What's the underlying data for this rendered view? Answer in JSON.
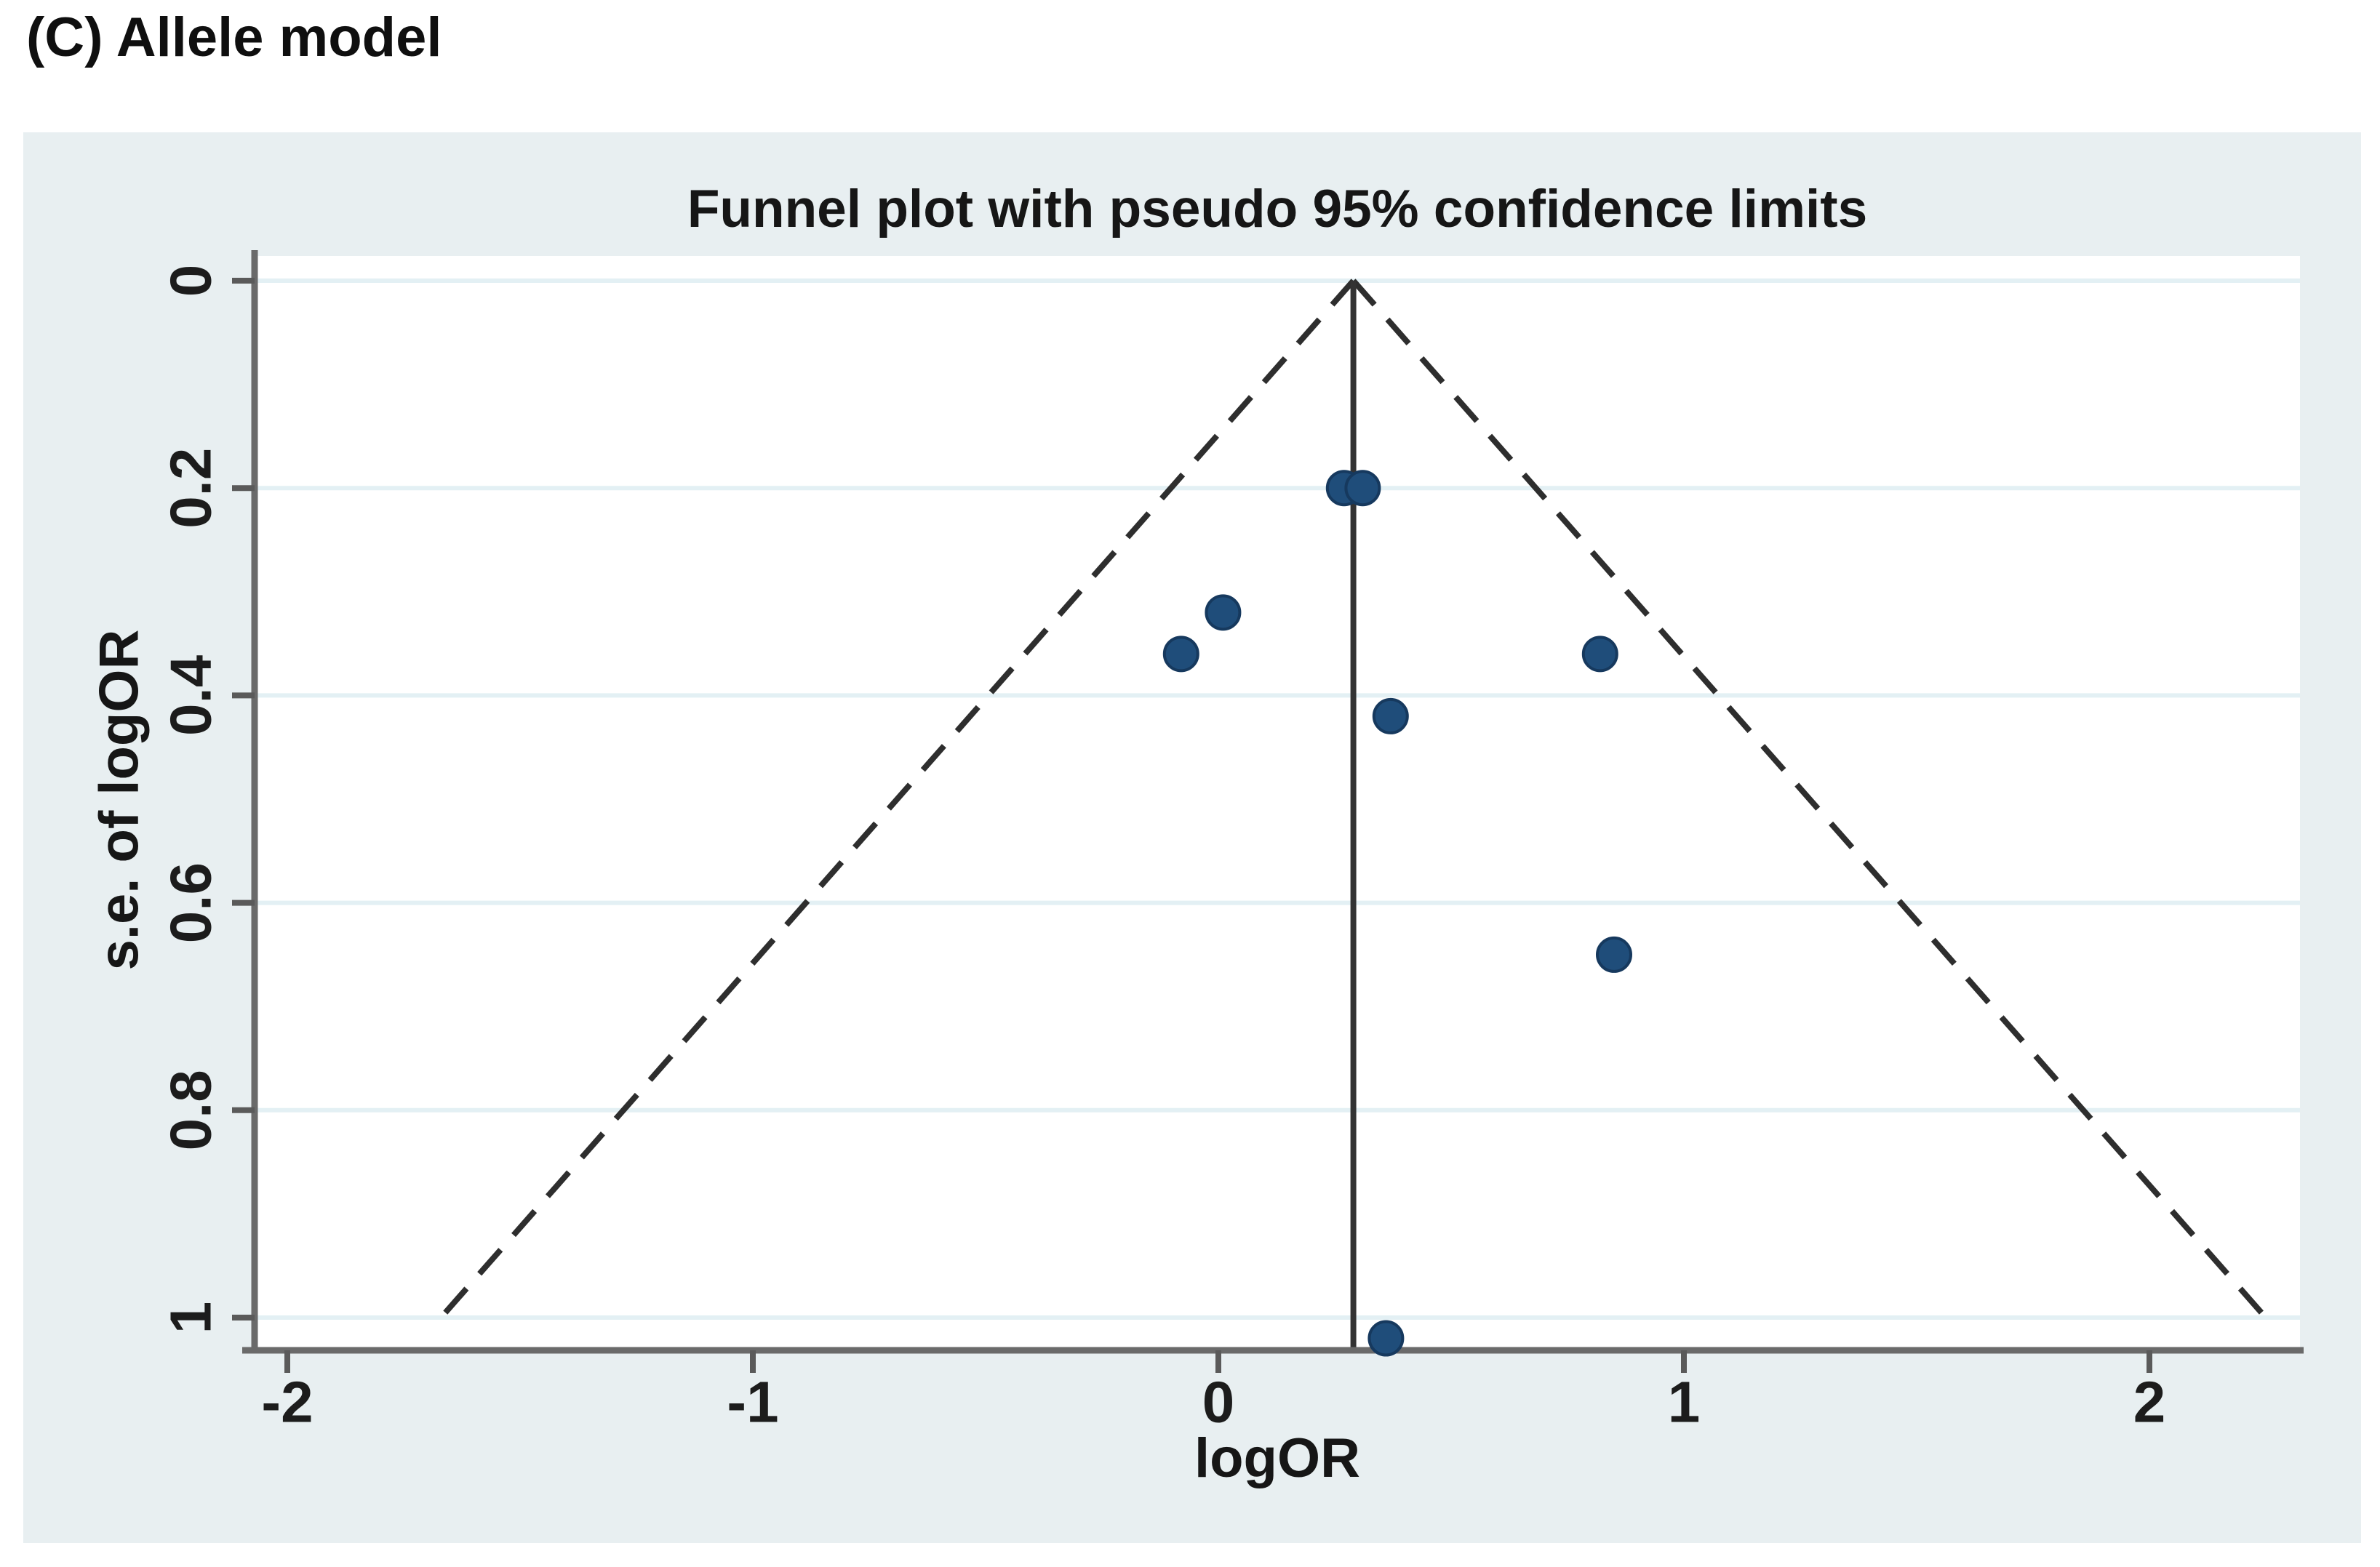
{
  "figure": {
    "heading": "(C) Allele model"
  },
  "chart_data": {
    "type": "scatter",
    "subtype": "funnel-plot",
    "title": "Funnel plot with pseudo 95% confidence limits",
    "xlabel": "logOR",
    "ylabel": "s.e. of logOR",
    "x_ticks": [
      {
        "v": -2,
        "label": "-2"
      },
      {
        "v": -1,
        "label": "-1"
      },
      {
        "v": 0,
        "label": "0"
      },
      {
        "v": 1,
        "label": "1"
      },
      {
        "v": 2,
        "label": "2"
      }
    ],
    "y_ticks": [
      {
        "v": 0,
        "label": "0"
      },
      {
        "v": 0.2,
        "label": "0.2"
      },
      {
        "v": 0.4,
        "label": "0.4"
      },
      {
        "v": 0.6,
        "label": "0.6"
      },
      {
        "v": 0.8,
        "label": "0.8"
      },
      {
        "v": 1,
        "label": "1"
      }
    ],
    "xlim": [
      -2.07,
      2.33
    ],
    "ylim_se": [
      0,
      1.03
    ],
    "y_axis_inverted": true,
    "grid": "horizontal",
    "legend": "none",
    "pooled_logOR": 0.29,
    "pseudo_ci_multiplier": 1.96,
    "ci_line_extent_se": 1.0,
    "points": [
      {
        "logOR": 0.27,
        "se": 0.2
      },
      {
        "logOR": 0.31,
        "se": 0.2
      },
      {
        "logOR": 0.01,
        "se": 0.32
      },
      {
        "logOR": -0.08,
        "se": 0.36
      },
      {
        "logOR": 0.82,
        "se": 0.36
      },
      {
        "logOR": 0.37,
        "se": 0.42
      },
      {
        "logOR": 0.85,
        "se": 0.65
      },
      {
        "logOR": 0.36,
        "se": 1.02
      }
    ],
    "colors": {
      "panel_bg": "#e8eff1",
      "plot_bg": "#ffffff",
      "gridline": "#e3f0f4",
      "axis": "#6a6a6a",
      "tick": "#5a5a5a",
      "text": "#161616",
      "pooled_line": "#333333",
      "ci_line": "#2e2e2e",
      "marker_fill": "#1f4d7a",
      "marker_edge": "#16395e"
    }
  }
}
